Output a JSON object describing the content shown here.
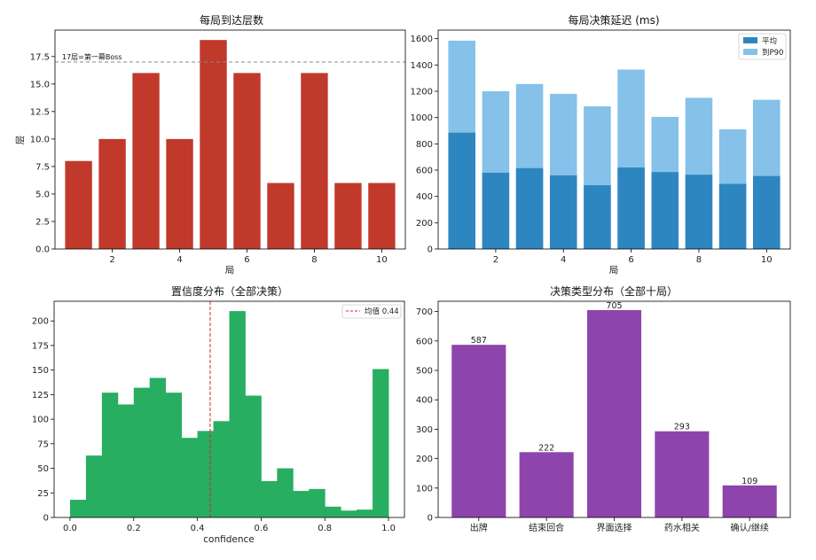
{
  "chart_data": [
    {
      "type": "bar",
      "title": "每局到达层数",
      "xlabel": "局",
      "ylabel": "层",
      "x": [
        1,
        2,
        3,
        4,
        5,
        6,
        7,
        8,
        9,
        10
      ],
      "values": [
        8,
        10,
        16,
        10,
        19,
        16,
        6,
        16,
        6,
        6
      ],
      "xlim": [
        0.3,
        10.7
      ],
      "ylim": [
        0,
        19.9
      ],
      "xticks": [
        2,
        4,
        6,
        8,
        10
      ],
      "yticks": [
        0.0,
        2.5,
        5.0,
        7.5,
        10.0,
        12.5,
        15.0,
        17.5
      ],
      "reference_line": {
        "y": 17,
        "label": "17层=第一幕Boss",
        "color": "#888888"
      },
      "colors": {
        "bar": "#c0392b"
      }
    },
    {
      "type": "bar",
      "title": "每局决策延迟 (ms)",
      "xlabel": "局",
      "ylabel": "",
      "x": [
        1,
        2,
        3,
        4,
        5,
        6,
        7,
        8,
        9,
        10
      ],
      "series": [
        {
          "name": "到P90",
          "values": [
            1585,
            1200,
            1255,
            1180,
            1085,
            1365,
            1005,
            1150,
            910,
            1135
          ],
          "color": "#85c1e9"
        },
        {
          "name": "平均",
          "values": [
            885,
            580,
            615,
            560,
            485,
            620,
            585,
            565,
            495,
            555
          ],
          "color": "#2e86c1"
        }
      ],
      "legend": {
        "position": "top-right",
        "entries": [
          "平均",
          "到P90"
        ]
      },
      "xlim": [
        0.3,
        10.7
      ],
      "ylim": [
        0,
        1665
      ],
      "xticks": [
        2,
        4,
        6,
        8,
        10
      ],
      "yticks": [
        0,
        200,
        400,
        600,
        800,
        1000,
        1200,
        1400,
        1600
      ]
    },
    {
      "type": "histogram",
      "title": "置信度分布（全部决策）",
      "xlabel": "confidence",
      "ylabel": "",
      "bins": [
        0,
        0.05,
        0.1,
        0.15,
        0.2,
        0.25,
        0.3,
        0.35,
        0.4,
        0.45,
        0.5,
        0.55,
        0.6,
        0.65,
        0.7,
        0.75,
        0.8,
        0.85,
        0.9,
        0.95,
        1.0
      ],
      "counts": [
        18,
        63,
        127,
        115,
        132,
        142,
        127,
        81,
        88,
        98,
        210,
        124,
        37,
        50,
        27,
        29,
        11,
        7,
        8,
        151
      ],
      "mean": {
        "value": 0.44,
        "label": "均值 0.44",
        "color": "#d62728"
      },
      "legend": {
        "position": "top-right",
        "entries": [
          "均值 0.44"
        ]
      },
      "xlim": [
        -0.05,
        1.05
      ],
      "ylim": [
        0,
        220
      ],
      "xticks": [
        0.0,
        0.2,
        0.4,
        0.6,
        0.8,
        1.0
      ],
      "yticks": [
        0,
        25,
        50,
        75,
        100,
        125,
        150,
        175,
        200
      ],
      "colors": {
        "bar": "#27ae60"
      }
    },
    {
      "type": "bar",
      "title": "决策类型分布（全部十局）",
      "xlabel": "",
      "ylabel": "",
      "categories": [
        "出牌",
        "结束回合",
        "界面选择",
        "药水相关",
        "确认/继续"
      ],
      "values": [
        587,
        222,
        705,
        293,
        109
      ],
      "data_labels": [
        "587",
        "222",
        "705",
        "293",
        "109"
      ],
      "ylim": [
        0,
        735
      ],
      "yticks": [
        0,
        100,
        200,
        300,
        400,
        500,
        600,
        700
      ],
      "colors": {
        "bar": "#8e44ad"
      }
    }
  ]
}
